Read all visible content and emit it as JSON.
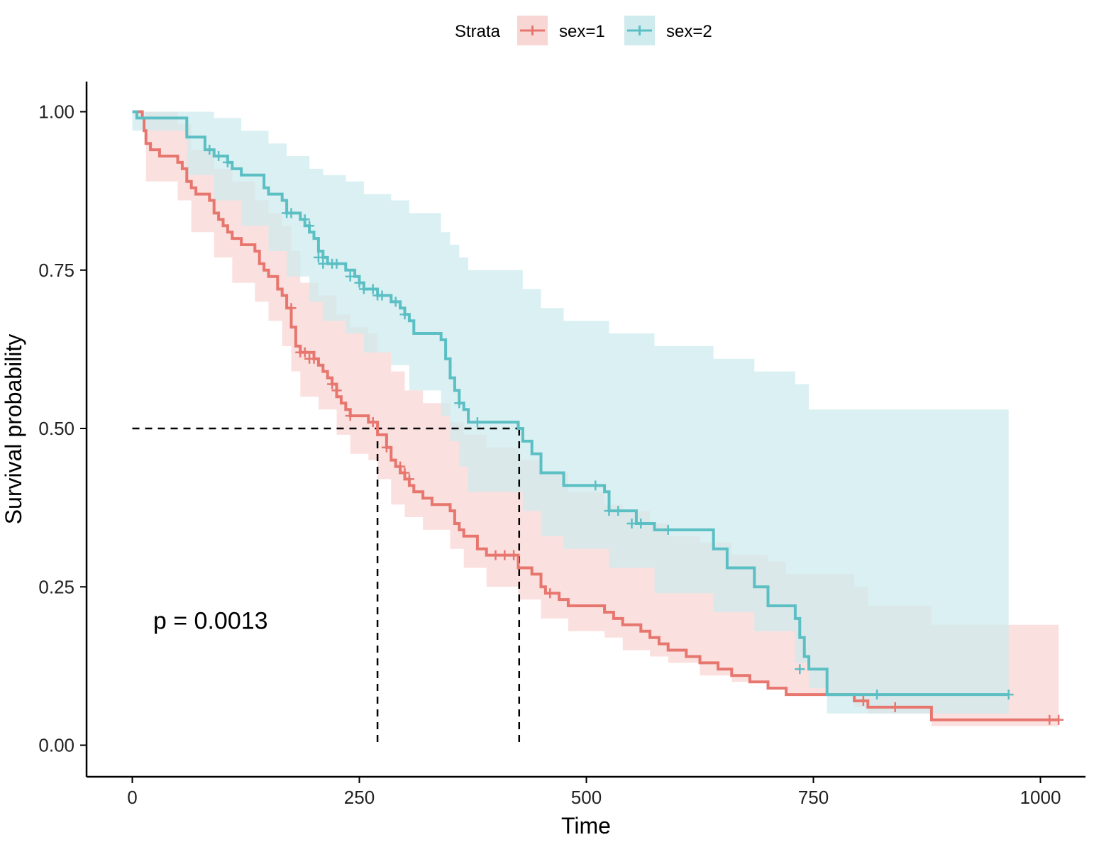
{
  "chart_data": {
    "type": "line",
    "subtype": "kaplan-meier survival curve with confidence bands",
    "title": "",
    "xlabel": "Time",
    "ylabel": "Survival probability",
    "xlim": [
      -50,
      1050
    ],
    "ylim": [
      -0.05,
      1.05
    ],
    "x_ticks": [
      0,
      250,
      500,
      750,
      1000
    ],
    "x_tick_labels": [
      "0",
      "250",
      "500",
      "750",
      "1000"
    ],
    "y_ticks": [
      0,
      0.25,
      0.5,
      0.75,
      1
    ],
    "y_tick_labels": [
      "0.00",
      "0.25",
      "0.50",
      "0.75",
      "1.00"
    ],
    "grid": false,
    "legend": {
      "title": "Strata",
      "position": "top",
      "entries": [
        "sex=1",
        "sex=2"
      ]
    },
    "annotations": [
      {
        "text": "p = 0.0013",
        "x": 23,
        "y": 0.197
      }
    ],
    "median_lines": [
      {
        "series": "sex=1",
        "median_time": 270
      },
      {
        "series": "sex=2",
        "median_time": 426
      }
    ],
    "series": [
      {
        "name": "sex=1",
        "color": "#E7766E",
        "band_color": "#F8D6D4",
        "steps": [
          [
            0,
            1.0
          ],
          [
            11,
            0.99
          ],
          [
            13,
            0.97
          ],
          [
            15,
            0.95
          ],
          [
            20,
            0.94
          ],
          [
            30,
            0.93
          ],
          [
            50,
            0.92
          ],
          [
            55,
            0.91
          ],
          [
            60,
            0.89
          ],
          [
            65,
            0.88
          ],
          [
            70,
            0.87
          ],
          [
            85,
            0.86
          ],
          [
            90,
            0.84
          ],
          [
            95,
            0.83
          ],
          [
            100,
            0.82
          ],
          [
            105,
            0.81
          ],
          [
            110,
            0.8
          ],
          [
            120,
            0.79
          ],
          [
            135,
            0.78
          ],
          [
            140,
            0.76
          ],
          [
            145,
            0.75
          ],
          [
            150,
            0.74
          ],
          [
            160,
            0.72
          ],
          [
            165,
            0.71
          ],
          [
            170,
            0.69
          ],
          [
            175,
            0.66
          ],
          [
            180,
            0.63
          ],
          [
            185,
            0.62
          ],
          [
            200,
            0.61
          ],
          [
            205,
            0.6
          ],
          [
            210,
            0.59
          ],
          [
            215,
            0.58
          ],
          [
            220,
            0.57
          ],
          [
            225,
            0.55
          ],
          [
            230,
            0.54
          ],
          [
            235,
            0.53
          ],
          [
            240,
            0.52
          ],
          [
            260,
            0.51
          ],
          [
            270,
            0.49
          ],
          [
            280,
            0.47
          ],
          [
            285,
            0.45
          ],
          [
            290,
            0.44
          ],
          [
            295,
            0.43
          ],
          [
            300,
            0.42
          ],
          [
            305,
            0.41
          ],
          [
            310,
            0.4
          ],
          [
            320,
            0.39
          ],
          [
            330,
            0.38
          ],
          [
            350,
            0.37
          ],
          [
            355,
            0.35
          ],
          [
            360,
            0.34
          ],
          [
            365,
            0.33
          ],
          [
            380,
            0.31
          ],
          [
            390,
            0.3
          ],
          [
            425,
            0.28
          ],
          [
            440,
            0.27
          ],
          [
            450,
            0.25
          ],
          [
            455,
            0.24
          ],
          [
            470,
            0.23
          ],
          [
            480,
            0.22
          ],
          [
            520,
            0.21
          ],
          [
            530,
            0.2
          ],
          [
            540,
            0.19
          ],
          [
            560,
            0.18
          ],
          [
            570,
            0.17
          ],
          [
            580,
            0.16
          ],
          [
            590,
            0.15
          ],
          [
            610,
            0.14
          ],
          [
            625,
            0.13
          ],
          [
            645,
            0.12
          ],
          [
            660,
            0.11
          ],
          [
            680,
            0.1
          ],
          [
            700,
            0.09
          ],
          [
            720,
            0.08
          ],
          [
            795,
            0.07
          ],
          [
            810,
            0.06
          ],
          [
            880,
            0.04
          ],
          [
            1020,
            0.04
          ]
        ],
        "band": [
          [
            0,
            1.0,
            1.0
          ],
          [
            15,
            0.89,
            1.0
          ],
          [
            50,
            0.86,
            0.98
          ],
          [
            65,
            0.81,
            0.94
          ],
          [
            90,
            0.77,
            0.91
          ],
          [
            110,
            0.73,
            0.89
          ],
          [
            135,
            0.7,
            0.86
          ],
          [
            150,
            0.67,
            0.84
          ],
          [
            165,
            0.63,
            0.82
          ],
          [
            175,
            0.59,
            0.78
          ],
          [
            185,
            0.55,
            0.73
          ],
          [
            205,
            0.53,
            0.71
          ],
          [
            225,
            0.49,
            0.68
          ],
          [
            240,
            0.46,
            0.66
          ],
          [
            260,
            0.45,
            0.65
          ],
          [
            270,
            0.42,
            0.62
          ],
          [
            285,
            0.38,
            0.59
          ],
          [
            300,
            0.36,
            0.56
          ],
          [
            320,
            0.34,
            0.54
          ],
          [
            350,
            0.31,
            0.51
          ],
          [
            365,
            0.28,
            0.49
          ],
          [
            390,
            0.25,
            0.47
          ],
          [
            425,
            0.23,
            0.45
          ],
          [
            450,
            0.2,
            0.43
          ],
          [
            480,
            0.18,
            0.4
          ],
          [
            520,
            0.17,
            0.38
          ],
          [
            540,
            0.15,
            0.37
          ],
          [
            570,
            0.14,
            0.35
          ],
          [
            590,
            0.13,
            0.33
          ],
          [
            625,
            0.11,
            0.32
          ],
          [
            660,
            0.1,
            0.3
          ],
          [
            700,
            0.09,
            0.29
          ],
          [
            720,
            0.08,
            0.27
          ],
          [
            795,
            0.06,
            0.25
          ],
          [
            810,
            0.05,
            0.22
          ],
          [
            880,
            0.03,
            0.19
          ],
          [
            1020,
            0.03,
            0.19
          ]
        ],
        "censored": [
          [
            175,
            0.69
          ],
          [
            185,
            0.62
          ],
          [
            190,
            0.62
          ],
          [
            195,
            0.61
          ],
          [
            200,
            0.61
          ],
          [
            220,
            0.57
          ],
          [
            225,
            0.56
          ],
          [
            240,
            0.52
          ],
          [
            265,
            0.51
          ],
          [
            280,
            0.47
          ],
          [
            295,
            0.44
          ],
          [
            300,
            0.43
          ],
          [
            305,
            0.42
          ],
          [
            400,
            0.3
          ],
          [
            410,
            0.3
          ],
          [
            420,
            0.3
          ],
          [
            460,
            0.24
          ],
          [
            805,
            0.07
          ],
          [
            840,
            0.06
          ],
          [
            1010,
            0.04
          ],
          [
            1020,
            0.04
          ]
        ]
      },
      {
        "name": "sex=2",
        "color": "#5BBFC4",
        "band_color": "#CFEBED",
        "steps": [
          [
            0,
            1.0
          ],
          [
            5,
            0.99
          ],
          [
            60,
            0.96
          ],
          [
            80,
            0.94
          ],
          [
            90,
            0.93
          ],
          [
            105,
            0.92
          ],
          [
            110,
            0.91
          ],
          [
            120,
            0.9
          ],
          [
            145,
            0.88
          ],
          [
            150,
            0.87
          ],
          [
            165,
            0.86
          ],
          [
            170,
            0.84
          ],
          [
            185,
            0.83
          ],
          [
            190,
            0.82
          ],
          [
            195,
            0.81
          ],
          [
            200,
            0.8
          ],
          [
            205,
            0.78
          ],
          [
            210,
            0.77
          ],
          [
            215,
            0.76
          ],
          [
            235,
            0.75
          ],
          [
            245,
            0.74
          ],
          [
            250,
            0.73
          ],
          [
            255,
            0.72
          ],
          [
            270,
            0.71
          ],
          [
            285,
            0.7
          ],
          [
            295,
            0.69
          ],
          [
            300,
            0.68
          ],
          [
            305,
            0.67
          ],
          [
            310,
            0.65
          ],
          [
            340,
            0.64
          ],
          [
            345,
            0.61
          ],
          [
            350,
            0.58
          ],
          [
            355,
            0.56
          ],
          [
            360,
            0.54
          ],
          [
            365,
            0.53
          ],
          [
            370,
            0.51
          ],
          [
            425,
            0.5
          ],
          [
            430,
            0.48
          ],
          [
            440,
            0.46
          ],
          [
            450,
            0.43
          ],
          [
            475,
            0.41
          ],
          [
            520,
            0.4
          ],
          [
            525,
            0.37
          ],
          [
            555,
            0.35
          ],
          [
            575,
            0.34
          ],
          [
            640,
            0.31
          ],
          [
            655,
            0.28
          ],
          [
            685,
            0.25
          ],
          [
            700,
            0.22
          ],
          [
            730,
            0.2
          ],
          [
            735,
            0.17
          ],
          [
            740,
            0.14
          ],
          [
            745,
            0.12
          ],
          [
            765,
            0.08
          ],
          [
            965,
            0.08
          ]
        ],
        "band": [
          [
            0,
            0.97,
            1.0
          ],
          [
            60,
            0.9,
            1.0
          ],
          [
            90,
            0.86,
            0.99
          ],
          [
            120,
            0.82,
            0.97
          ],
          [
            150,
            0.78,
            0.95
          ],
          [
            170,
            0.74,
            0.93
          ],
          [
            195,
            0.7,
            0.91
          ],
          [
            210,
            0.67,
            0.9
          ],
          [
            235,
            0.65,
            0.89
          ],
          [
            255,
            0.62,
            0.87
          ],
          [
            285,
            0.6,
            0.86
          ],
          [
            305,
            0.56,
            0.84
          ],
          [
            340,
            0.52,
            0.81
          ],
          [
            350,
            0.48,
            0.79
          ],
          [
            360,
            0.44,
            0.77
          ],
          [
            370,
            0.4,
            0.75
          ],
          [
            430,
            0.37,
            0.72
          ],
          [
            450,
            0.33,
            0.69
          ],
          [
            475,
            0.31,
            0.67
          ],
          [
            525,
            0.28,
            0.65
          ],
          [
            575,
            0.24,
            0.63
          ],
          [
            640,
            0.21,
            0.61
          ],
          [
            685,
            0.18,
            0.59
          ],
          [
            730,
            0.13,
            0.57
          ],
          [
            745,
            0.09,
            0.53
          ],
          [
            765,
            0.05,
            0.53
          ],
          [
            965,
            0.05,
            0.53
          ]
        ],
        "censored": [
          [
            85,
            0.94
          ],
          [
            95,
            0.93
          ],
          [
            105,
            0.92
          ],
          [
            170,
            0.84
          ],
          [
            175,
            0.84
          ],
          [
            190,
            0.83
          ],
          [
            195,
            0.82
          ],
          [
            205,
            0.77
          ],
          [
            210,
            0.76
          ],
          [
            220,
            0.76
          ],
          [
            225,
            0.76
          ],
          [
            240,
            0.74
          ],
          [
            250,
            0.73
          ],
          [
            255,
            0.72
          ],
          [
            265,
            0.72
          ],
          [
            270,
            0.71
          ],
          [
            275,
            0.71
          ],
          [
            290,
            0.7
          ],
          [
            300,
            0.68
          ],
          [
            360,
            0.54
          ],
          [
            380,
            0.51
          ],
          [
            510,
            0.41
          ],
          [
            525,
            0.37
          ],
          [
            535,
            0.37
          ],
          [
            550,
            0.35
          ],
          [
            560,
            0.35
          ],
          [
            590,
            0.34
          ],
          [
            735,
            0.12
          ],
          [
            820,
            0.08
          ],
          [
            965,
            0.08
          ]
        ]
      }
    ]
  }
}
